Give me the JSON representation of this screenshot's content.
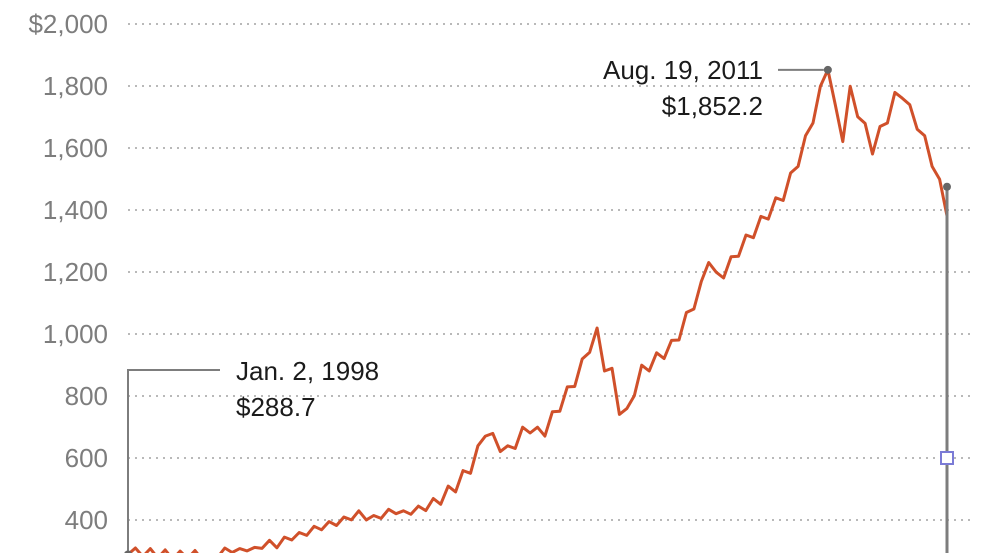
{
  "chart_data": {
    "type": "line",
    "title": "",
    "xlabel": "",
    "ylabel": "",
    "ylim": [
      330,
      2000
    ],
    "y_ticks": [
      {
        "value": 2000,
        "label": "$2,000"
      },
      {
        "value": 1800,
        "label": "1,800"
      },
      {
        "value": 1600,
        "label": "1,600"
      },
      {
        "value": 1400,
        "label": "1,400"
      },
      {
        "value": 1200,
        "label": "1,200"
      },
      {
        "value": 1000,
        "label": "1,000"
      },
      {
        "value": 800,
        "label": "800"
      },
      {
        "value": 600,
        "label": "600"
      },
      {
        "value": 400,
        "label": "400"
      }
    ],
    "grid": true,
    "colors": {
      "line": "#d0502a",
      "markers": "#666666",
      "axis": "#7d7d7d",
      "highlight": "#7b7bd6"
    },
    "series": [
      {
        "values": [
          288.7,
          300,
          292,
          298,
          287,
          294,
          283,
          290,
          285,
          292,
          280,
          276,
          288,
          300,
          305,
          298,
          310,
          302,
          318,
          325,
          320,
          335,
          345,
          350,
          360,
          370,
          378,
          385,
          392,
          400,
          410,
          420,
          410,
          405,
          415,
          425,
          430,
          420,
          428,
          435,
          440,
          450,
          470,
          490,
          510,
          540,
          570,
          620,
          690,
          660,
          640,
          620,
          650,
          680,
          700,
          680,
          690,
          730,
          770,
          810,
          850,
          900,
          960,
          1000,
          900,
          870,
          760,
          740,
          820,
          880,
          900,
          920,
          940,
          960,
          1000,
          1050,
          1100,
          1150,
          1250,
          1180,
          1200,
          1230,
          1270,
          1300,
          1330,
          1360,
          1390,
          1420,
          1450,
          1500,
          1560,
          1620,
          1700,
          1780,
          1852.2,
          1720,
          1640,
          1780,
          1720,
          1660,
          1600,
          1650,
          1700,
          1760,
          1780,
          1720,
          1680,
          1620,
          1560,
          1480,
          1400
        ]
      }
    ],
    "annotations": [
      {
        "label": "Aug. 19, 2011",
        "value_label": "$1,852.2",
        "index": 94,
        "value": 1852.2
      },
      {
        "label": "Jan. 2, 1998",
        "value_label": "$288.7",
        "index": 0,
        "value": 288.7
      }
    ],
    "end_marker_value": 1475,
    "highlight_marker_value": 600
  }
}
